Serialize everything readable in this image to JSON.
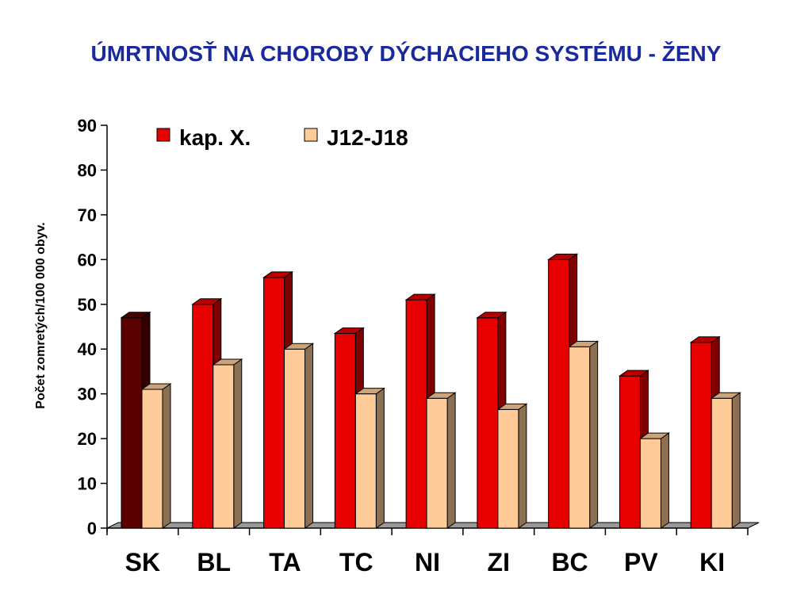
{
  "chart_data": {
    "type": "bar",
    "title": "ÚMRTNOSŤ NA CHOROBY DÝCHACIEHO SYSTÉMU - ŽENY",
    "ylabel": "Počet zomretých/100 000 obyv.",
    "xlabel": "",
    "ylim": [
      0,
      90
    ],
    "yticks": [
      "0",
      "10",
      "20",
      "30",
      "40",
      "50",
      "60",
      "70",
      "80",
      "90"
    ],
    "categories": [
      "SK",
      "BL",
      "TA",
      "TC",
      "NI",
      "ZI",
      "BC",
      "PV",
      "KI"
    ],
    "series": [
      {
        "name": "kap. X.",
        "values": [
          47,
          50,
          56,
          43.5,
          51,
          47,
          60,
          34,
          41.5
        ]
      },
      {
        "name": "J12-J18",
        "values": [
          31,
          36.5,
          40,
          30,
          29,
          26.5,
          40.5,
          20,
          29
        ]
      }
    ],
    "legend": "top",
    "grid": false,
    "colors": {
      "kap_x": "#e60000",
      "kap_x_highlight": "#5a0000",
      "j12": "#ffcc99",
      "axis": "#000000",
      "title": "#1a2a9c"
    }
  }
}
